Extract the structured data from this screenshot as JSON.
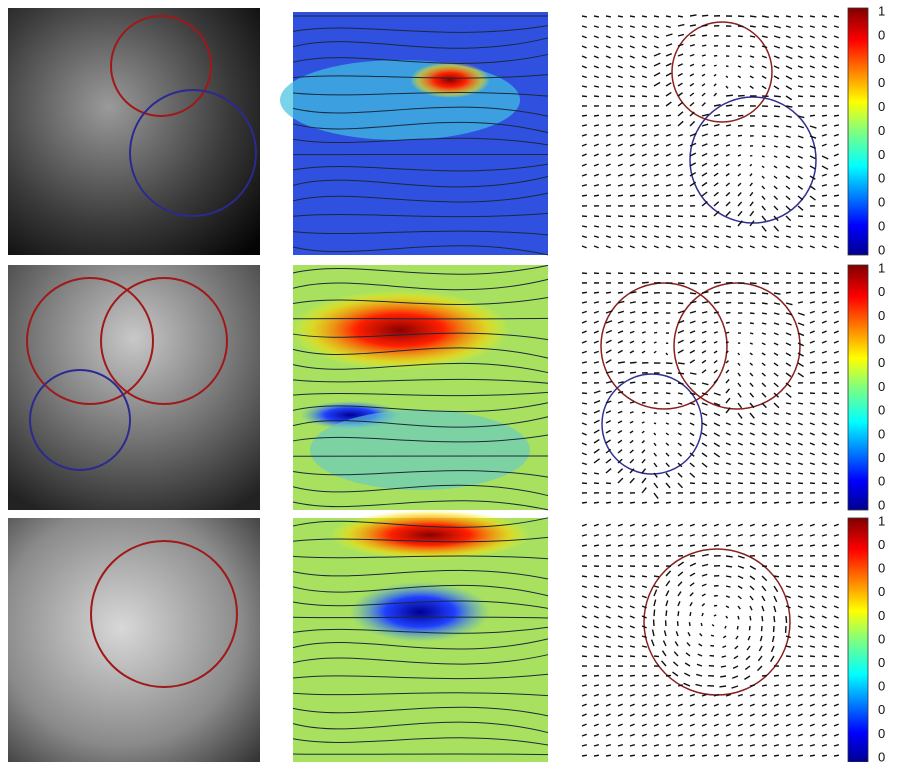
{
  "colorbars": [
    {
      "labels": [
        "1",
        "0",
        "0",
        "0",
        "0",
        "0",
        "0",
        "0",
        "0",
        "0",
        "0"
      ]
    },
    {
      "labels": [
        "1",
        "0",
        "0",
        "0",
        "0",
        "0",
        "0",
        "0",
        "0",
        "0",
        "0"
      ]
    },
    {
      "labels": [
        "1",
        "0",
        "0",
        "0",
        "0",
        "0",
        "0",
        "0",
        "0",
        "0",
        "0"
      ]
    }
  ]
}
